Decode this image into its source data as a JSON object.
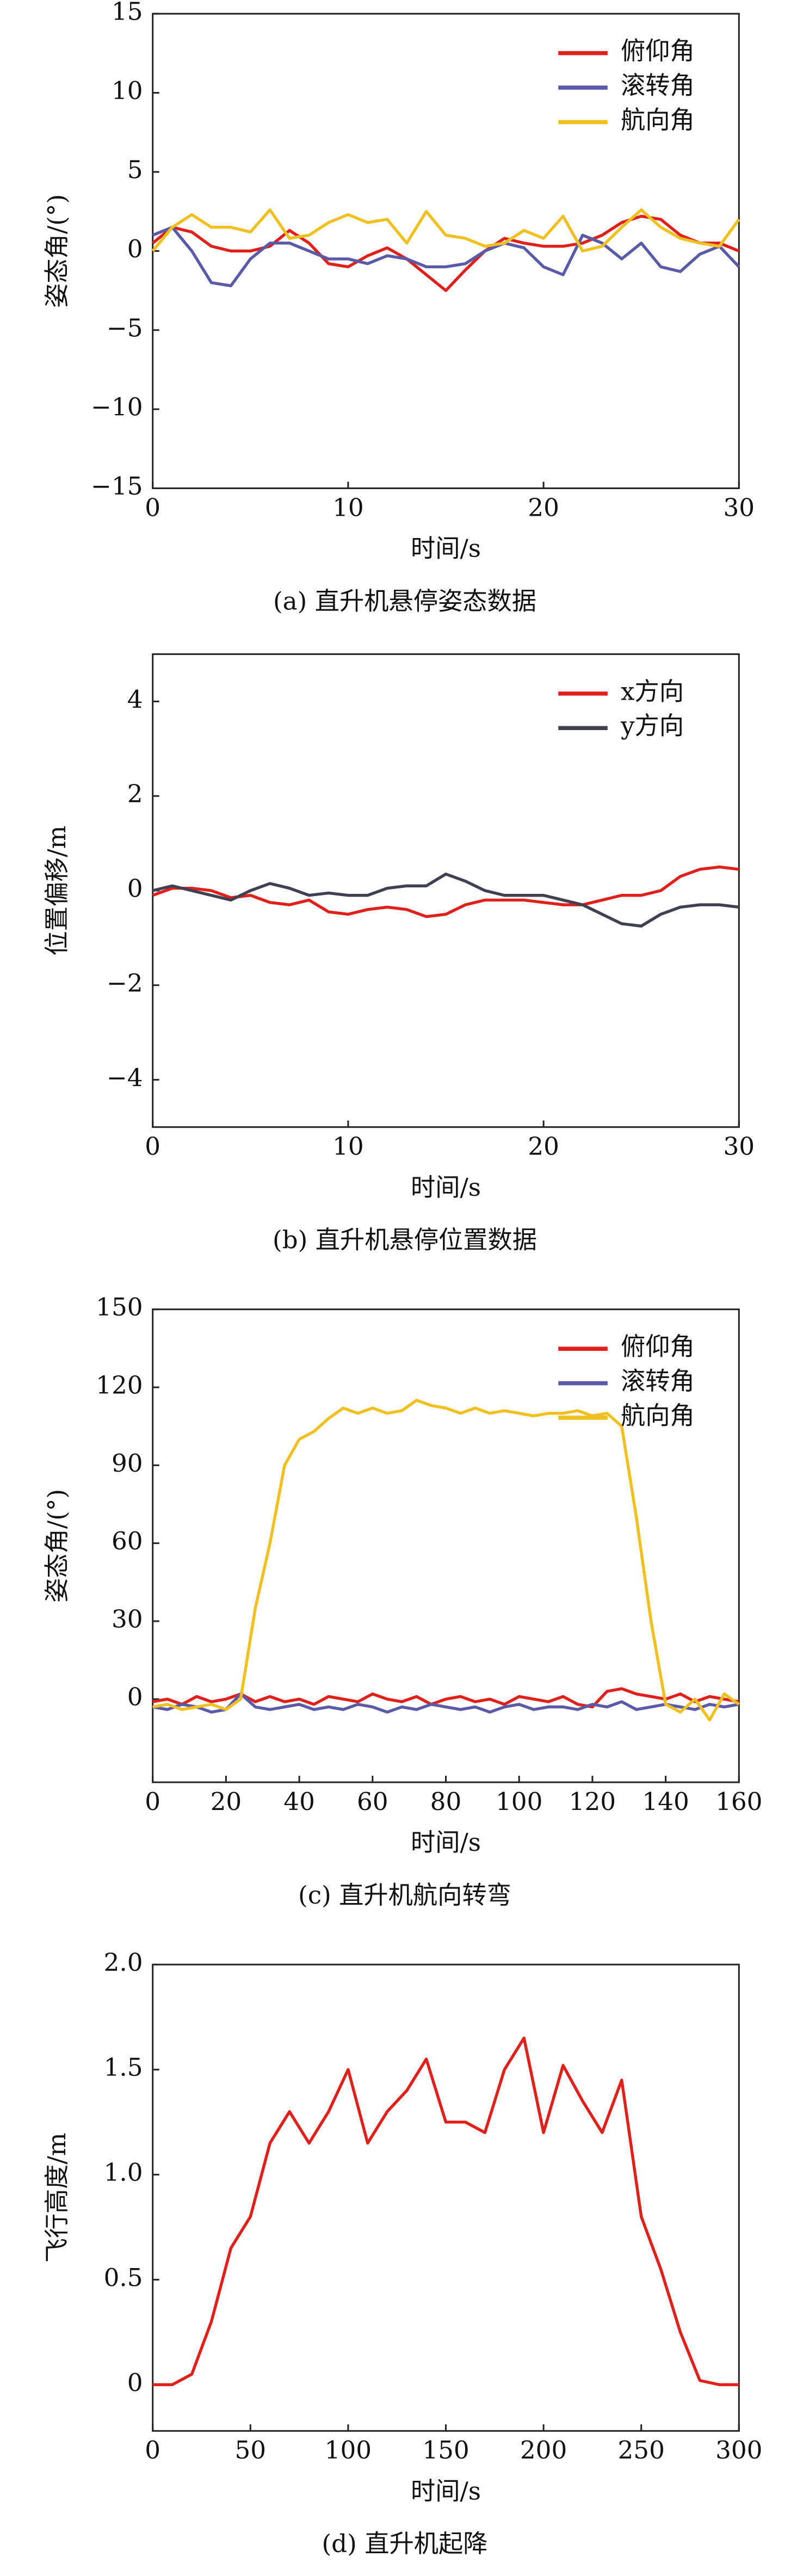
{
  "chart_data": [
    {
      "type": "line",
      "caption": "(a) 直升机悬停姿态数据",
      "xlabel": "时间/s",
      "ylabel": "姿态角/(°)",
      "x": [
        0,
        1,
        2,
        3,
        4,
        5,
        6,
        7,
        8,
        9,
        10,
        11,
        12,
        13,
        14,
        15,
        16,
        17,
        18,
        19,
        20,
        21,
        22,
        23,
        24,
        25,
        26,
        27,
        28,
        29,
        30
      ],
      "series": [
        {
          "name": "俯仰角",
          "color": "#e0201b",
          "values": [
            0.5,
            1.5,
            1.2,
            0.3,
            0,
            0,
            0.3,
            1.3,
            0.5,
            -0.8,
            -1,
            -0.3,
            0.2,
            -0.5,
            -1.5,
            -2.5,
            -1.2,
            0,
            0.8,
            0.5,
            0.3,
            0.3,
            0.5,
            1,
            1.8,
            2.2,
            2,
            1,
            0.5,
            0.5,
            0
          ]
        },
        {
          "name": "滚转角",
          "color": "#5a5aa8",
          "values": [
            1,
            1.5,
            0,
            -2,
            -2.2,
            -0.5,
            0.5,
            0.5,
            0,
            -0.5,
            -0.5,
            -0.8,
            -0.3,
            -0.5,
            -1,
            -1,
            -0.8,
            0,
            0.5,
            0.2,
            -1,
            -1.5,
            1,
            0.5,
            -0.5,
            0.5,
            -1,
            -1.3,
            -0.2,
            0.3,
            -1
          ]
        },
        {
          "name": "航向角",
          "color": "#f0c020",
          "values": [
            0,
            1.5,
            2.3,
            1.5,
            1.5,
            1.2,
            2.6,
            0.8,
            1,
            1.8,
            2.3,
            1.8,
            2,
            0.5,
            2.5,
            1,
            0.8,
            0.3,
            0.5,
            1.3,
            0.8,
            2.2,
            0,
            0.3,
            1.5,
            2.6,
            1.5,
            0.8,
            0.5,
            0.3,
            2
          ]
        }
      ],
      "xlim": [
        0,
        30
      ],
      "xticks": [
        0,
        10,
        20,
        30
      ],
      "ylim": [
        -15,
        15
      ],
      "yticks": [
        {
          "value": -15,
          "label": "−15"
        },
        {
          "value": -10,
          "label": "−10"
        },
        {
          "value": -5,
          "label": "−5"
        },
        0,
        5,
        10,
        15
      ],
      "legend": "upper right"
    },
    {
      "type": "line",
      "caption": "(b) 直升机悬停位置数据",
      "xlabel": "时间/s",
      "ylabel": "位置偏移/m",
      "x": [
        0,
        1,
        2,
        3,
        4,
        5,
        6,
        7,
        8,
        9,
        10,
        11,
        12,
        13,
        14,
        15,
        16,
        17,
        18,
        19,
        20,
        21,
        22,
        23,
        24,
        25,
        26,
        27,
        28,
        29,
        30
      ],
      "series": [
        {
          "name": "x方向",
          "color": "#e0201b",
          "values": [
            -0.1,
            0.05,
            0.05,
            0,
            -0.15,
            -0.1,
            -0.25,
            -0.3,
            -0.2,
            -0.45,
            -0.5,
            -0.4,
            -0.35,
            -0.4,
            -0.55,
            -0.5,
            -0.3,
            -0.2,
            -0.2,
            -0.2,
            -0.25,
            -0.3,
            -0.3,
            -0.2,
            -0.1,
            -0.1,
            0,
            0.3,
            0.45,
            0.5,
            0.45
          ]
        },
        {
          "name": "y方向",
          "color": "#404050",
          "values": [
            0,
            0.1,
            0,
            -0.1,
            -0.2,
            0,
            0.15,
            0.05,
            -0.1,
            -0.05,
            -0.1,
            -0.1,
            0.05,
            0.1,
            0.1,
            0.35,
            0.2,
            0,
            -0.1,
            -0.1,
            -0.1,
            -0.2,
            -0.3,
            -0.5,
            -0.7,
            -0.75,
            -0.5,
            -0.35,
            -0.3,
            -0.3,
            -0.35
          ]
        }
      ],
      "xlim": [
        0,
        30
      ],
      "xticks": [
        0,
        10,
        20,
        30
      ],
      "ylim": [
        -5,
        5
      ],
      "yticks": [
        {
          "value": -4,
          "label": "−4"
        },
        {
          "value": -2,
          "label": "−2"
        },
        0,
        2,
        4
      ],
      "legend": "upper right"
    },
    {
      "type": "line",
      "caption": "(c) 直升机航向转弯",
      "xlabel": "时间/s",
      "ylabel": "姿态角/(°)",
      "x": [
        0,
        4,
        8,
        12,
        16,
        20,
        24,
        28,
        32,
        36,
        40,
        44,
        48,
        52,
        56,
        60,
        64,
        68,
        72,
        76,
        80,
        84,
        88,
        92,
        96,
        100,
        104,
        108,
        112,
        116,
        120,
        124,
        128,
        132,
        136,
        140,
        144,
        148,
        152,
        156,
        160
      ],
      "series": [
        {
          "name": "俯仰角",
          "color": "#e0201b",
          "values": [
            -1,
            0,
            -2,
            1,
            -1,
            0,
            2,
            -1,
            1,
            -1,
            0,
            -2,
            1,
            0,
            -1,
            2,
            0,
            -1,
            1,
            -2,
            0,
            1,
            -1,
            0,
            -2,
            1,
            0,
            -1,
            1,
            -2,
            -3,
            3,
            4,
            2,
            1,
            0,
            2,
            -1,
            1,
            0,
            -1
          ]
        },
        {
          "name": "滚转角",
          "color": "#5a5aa8",
          "values": [
            -3,
            -4,
            -2,
            -3,
            -5,
            -4,
            2,
            -3,
            -4,
            -3,
            -2,
            -4,
            -3,
            -4,
            -2,
            -3,
            -5,
            -3,
            -4,
            -2,
            -3,
            -4,
            -3,
            -5,
            -3,
            -2,
            -4,
            -3,
            -3,
            -4,
            -2,
            -3,
            -1,
            -4,
            -3,
            -2,
            -3,
            -4,
            -2,
            -3,
            -2
          ]
        },
        {
          "name": "航向角",
          "color": "#f0c020",
          "values": [
            -3,
            -2,
            -4,
            -3,
            -2,
            -4,
            0,
            35,
            60,
            90,
            100,
            103,
            108,
            112,
            110,
            112,
            110,
            111,
            115,
            113,
            112,
            110,
            112,
            110,
            111,
            110,
            109,
            110,
            110,
            111,
            109,
            110,
            105,
            70,
            30,
            -2,
            -5,
            0,
            -8,
            2,
            -2
          ]
        }
      ],
      "xlim": [
        0,
        160
      ],
      "xticks": [
        0,
        20,
        40,
        60,
        80,
        100,
        120,
        140,
        160
      ],
      "ylim": [
        -32,
        150
      ],
      "yticks": [
        0,
        30,
        60,
        90,
        120,
        150
      ],
      "legend": "upper right"
    },
    {
      "type": "line",
      "caption": "(d) 直升机起降",
      "xlabel": "时间/s",
      "ylabel": "飞行高度/m",
      "x": [
        0,
        10,
        20,
        30,
        40,
        50,
        60,
        70,
        80,
        90,
        100,
        110,
        120,
        130,
        140,
        150,
        160,
        170,
        180,
        190,
        200,
        210,
        220,
        230,
        240,
        250,
        260,
        270,
        280,
        290,
        300
      ],
      "values": [
        0,
        0,
        0.05,
        0.3,
        0.65,
        0.8,
        1.15,
        1.3,
        1.15,
        1.3,
        1.5,
        1.15,
        1.3,
        1.4,
        1.55,
        1.25,
        1.25,
        1.2,
        1.5,
        1.65,
        1.2,
        1.52,
        1.35,
        1.2,
        1.45,
        0.8,
        0.55,
        0.25,
        0.02,
        0,
        0
      ],
      "color": "#e0201b",
      "xlim": [
        0,
        300
      ],
      "xticks": [
        0,
        50,
        100,
        150,
        200,
        250,
        300
      ],
      "ylim": [
        -0.22,
        2
      ],
      "yticks": [
        0,
        0.5,
        {
          "value": 1,
          "label": "1.0"
        },
        1.5,
        {
          "value": 2,
          "label": "2.0"
        }
      ]
    }
  ]
}
